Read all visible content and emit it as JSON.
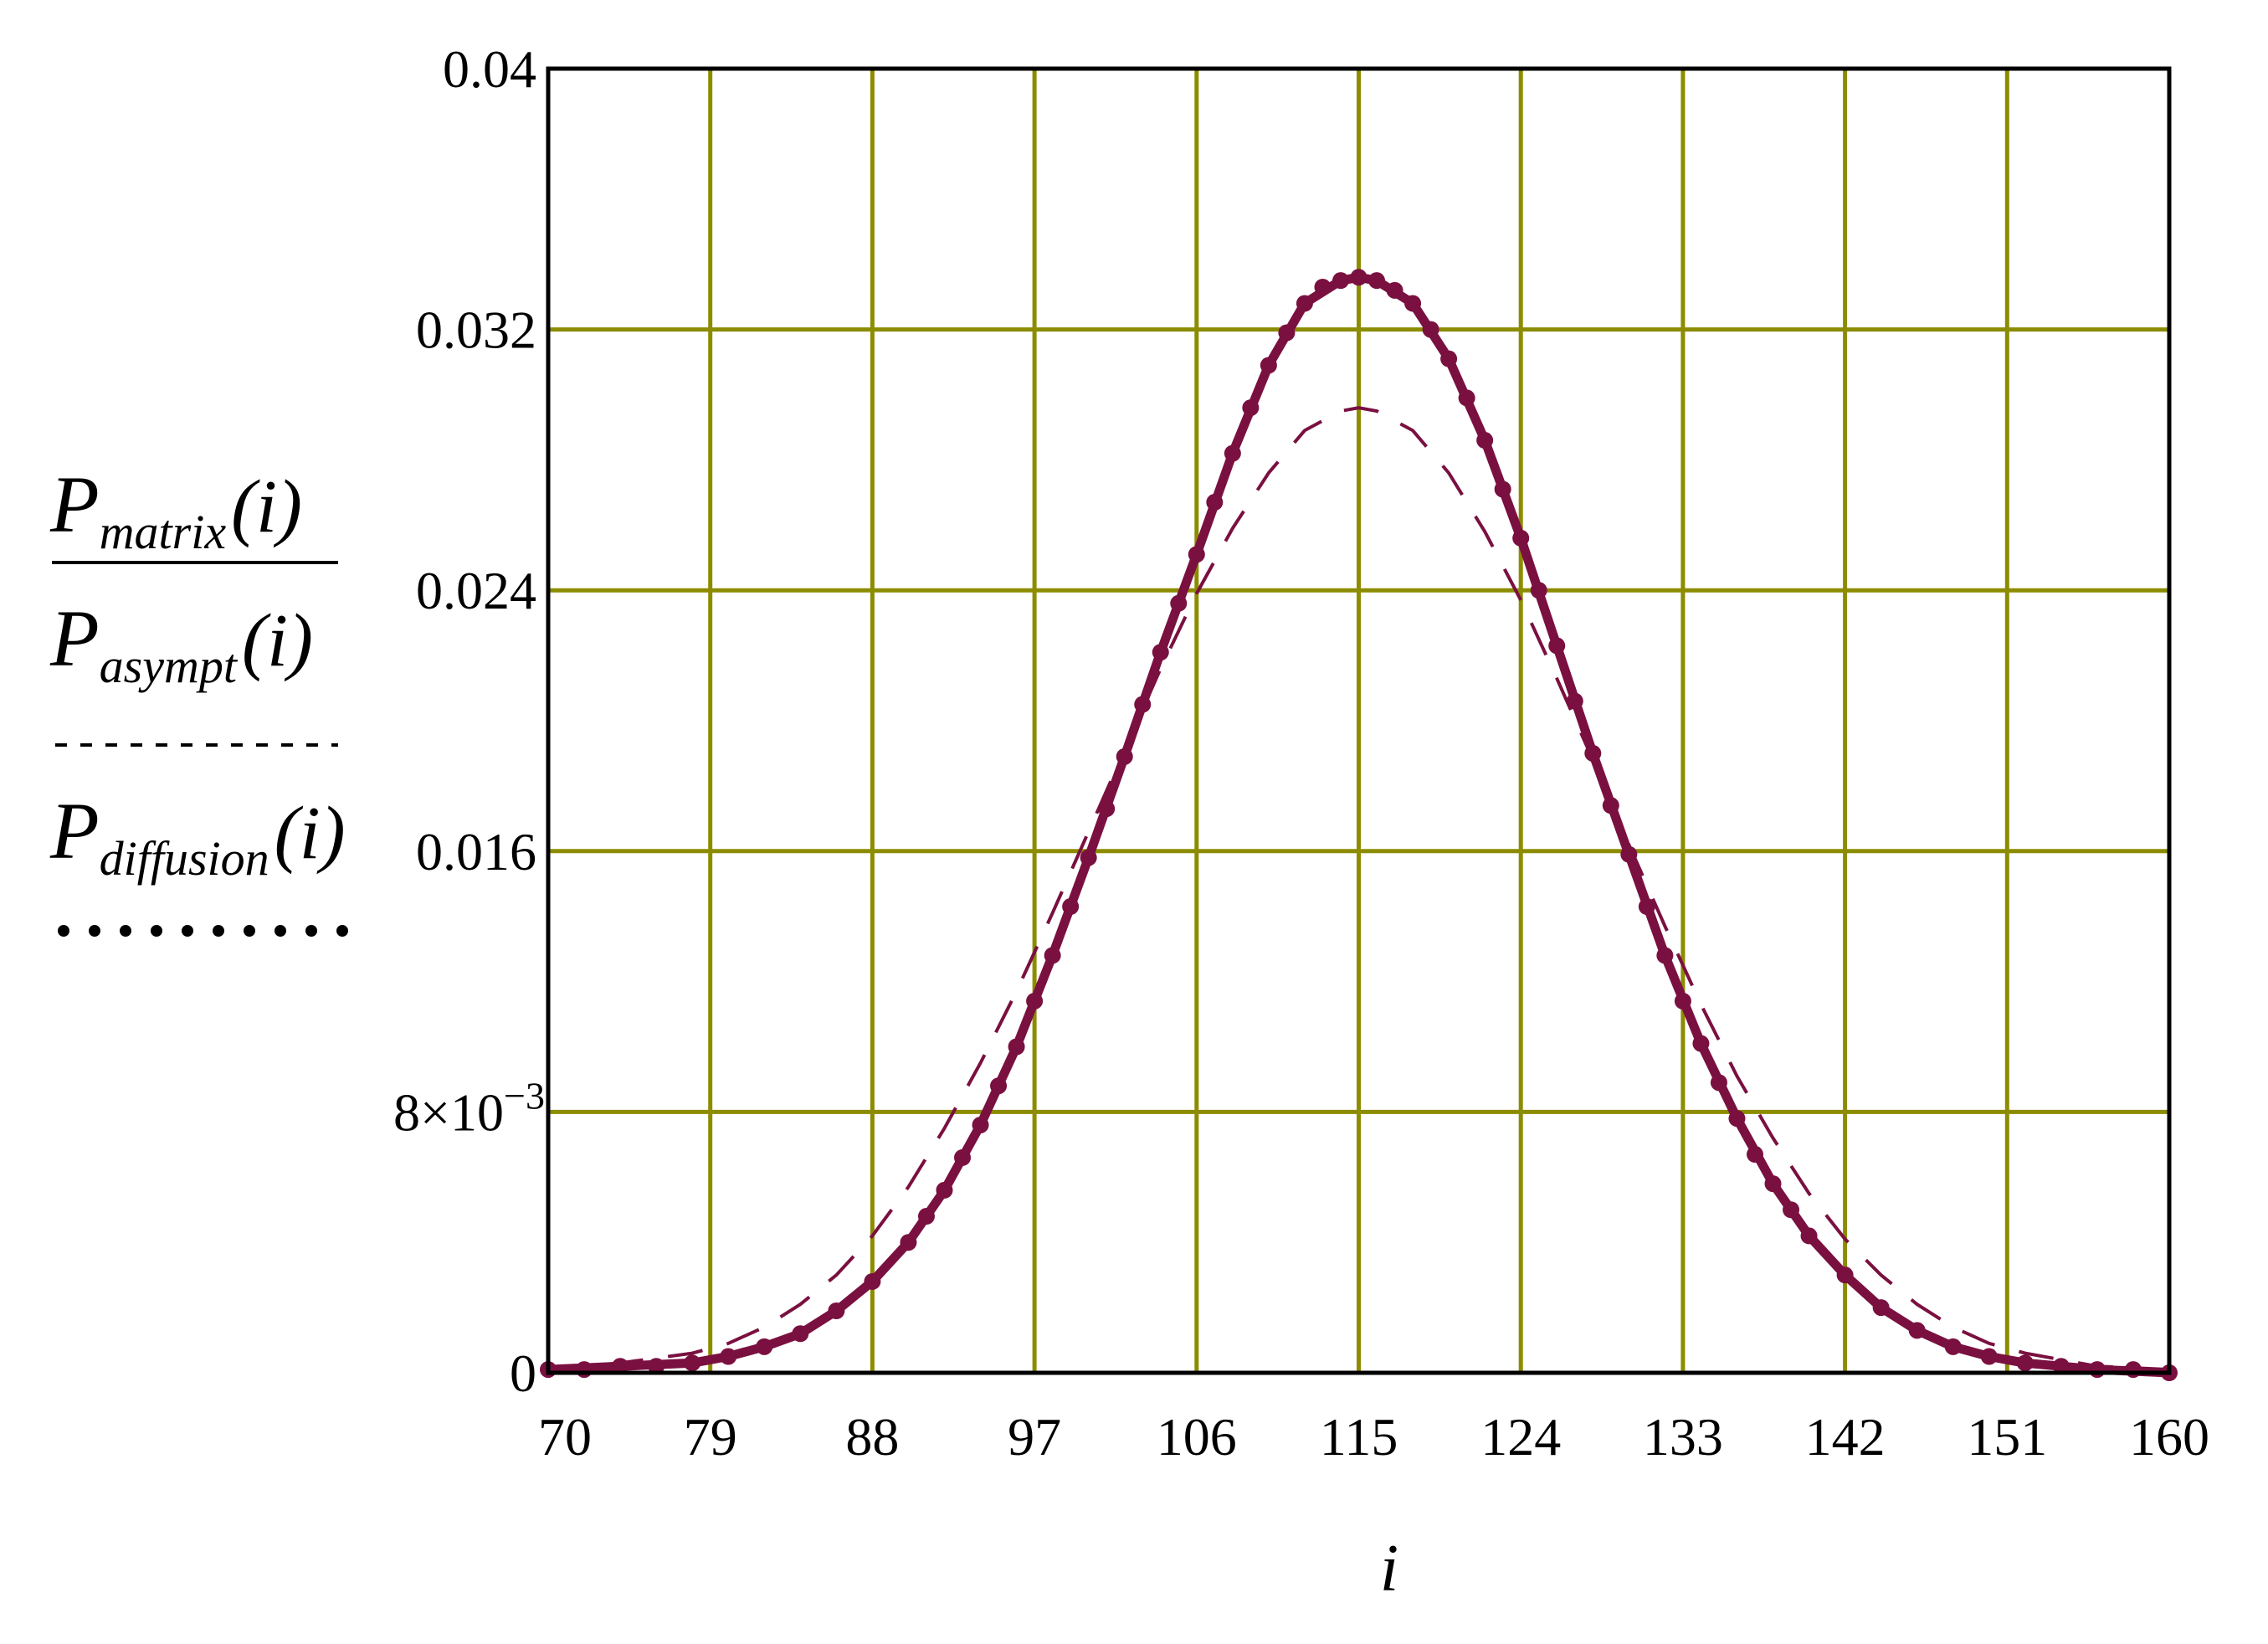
{
  "colors": {
    "grid": "#8c8c00",
    "series": "#7a1040",
    "frame": "#000000",
    "background": "#ffffff"
  },
  "chart_data": {
    "type": "line",
    "title": "",
    "xlabel": "i",
    "xlim": [
      70,
      160
    ],
    "ylim": [
      0,
      0.04
    ],
    "x_ticks": [
      "70",
      "79",
      "88",
      "97",
      "106",
      "115",
      "124",
      "133",
      "142",
      "151",
      "160"
    ],
    "y_ticks": [
      "0",
      "8×10",
      "0.016",
      "0.024",
      "0.032",
      "0.04"
    ],
    "y_tick_exponent": "−3",
    "grid": true,
    "legend_placement": "left",
    "legend": [
      {
        "main": "P",
        "sub": "matrix",
        "arg": "(i)",
        "style": "solid"
      },
      {
        "main": "P",
        "sub": "asympt",
        "arg": "(i)",
        "style": "dashed"
      },
      {
        "main": "P",
        "sub": "diffusion",
        "arg": "(i)",
        "style": "dotted"
      }
    ],
    "series": [
      {
        "name": "Pmatrix(i)",
        "style": "solid",
        "x": [
          70,
          74,
          78,
          80,
          82,
          84,
          86,
          88,
          90,
          92,
          94,
          96,
          98,
          100,
          102,
          104,
          106,
          108,
          110,
          112,
          114,
          115,
          116,
          118,
          120,
          122,
          124,
          126,
          128,
          130,
          132,
          134,
          136,
          138,
          140,
          142,
          144,
          146,
          148,
          150,
          152,
          154,
          156,
          160
        ],
        "y": [
          0.0001,
          0.0002,
          0.0003,
          0.0005,
          0.0008,
          0.0012,
          0.0019,
          0.0028,
          0.004,
          0.0056,
          0.0076,
          0.01,
          0.0128,
          0.0158,
          0.0189,
          0.0221,
          0.0251,
          0.0282,
          0.0309,
          0.0328,
          0.0335,
          0.0336,
          0.0335,
          0.0328,
          0.0311,
          0.0286,
          0.0256,
          0.0223,
          0.019,
          0.0159,
          0.0128,
          0.0101,
          0.0078,
          0.0058,
          0.0042,
          0.003,
          0.002,
          0.0013,
          0.0008,
          0.0005,
          0.0003,
          0.0002,
          0.0001,
          0.0
        ]
      },
      {
        "name": "Pasympt(i)",
        "style": "dashed",
        "x": [
          70,
          74,
          78,
          80,
          82,
          84,
          86,
          88,
          90,
          92,
          94,
          96,
          98,
          100,
          102,
          104,
          106,
          108,
          110,
          112,
          114,
          115,
          116,
          118,
          120,
          122,
          124,
          126,
          128,
          130,
          132,
          134,
          136,
          138,
          140,
          142,
          144,
          146,
          148,
          150,
          152,
          154,
          156,
          160
        ],
        "y": [
          0.0001,
          0.0003,
          0.0006,
          0.0009,
          0.0014,
          0.0021,
          0.003,
          0.0042,
          0.0057,
          0.0075,
          0.0095,
          0.0117,
          0.0141,
          0.0166,
          0.0191,
          0.0216,
          0.0239,
          0.0259,
          0.0276,
          0.0289,
          0.0295,
          0.0296,
          0.0295,
          0.0289,
          0.0276,
          0.0258,
          0.0237,
          0.0213,
          0.0188,
          0.0162,
          0.0137,
          0.0113,
          0.0091,
          0.0072,
          0.0055,
          0.0041,
          0.003,
          0.0021,
          0.0014,
          0.0009,
          0.0006,
          0.0004,
          0.0002,
          0.0001
        ]
      },
      {
        "name": "Pdiffusion(i)",
        "style": "dotted",
        "x": [
          70,
          72,
          74,
          76,
          78,
          80,
          82,
          84,
          86,
          88,
          90,
          91,
          92,
          93,
          94,
          95,
          96,
          97,
          98,
          99,
          100,
          101,
          102,
          103,
          104,
          105,
          106,
          107,
          108,
          109,
          110,
          111,
          112,
          113,
          114,
          115,
          116,
          117,
          118,
          119,
          120,
          121,
          122,
          123,
          124,
          125,
          126,
          127,
          128,
          129,
          130,
          131,
          132,
          133,
          134,
          135,
          136,
          137,
          138,
          139,
          140,
          142,
          144,
          146,
          148,
          150,
          152,
          154,
          156,
          158,
          160
        ],
        "y": [
          0.0001,
          0.0001,
          0.0002,
          0.0002,
          0.0003,
          0.0005,
          0.0008,
          0.0012,
          0.0019,
          0.0028,
          0.004,
          0.0048,
          0.0056,
          0.0066,
          0.0076,
          0.0088,
          0.01,
          0.0114,
          0.0128,
          0.0143,
          0.0158,
          0.0173,
          0.0189,
          0.0205,
          0.0221,
          0.0236,
          0.0251,
          0.0267,
          0.0282,
          0.0296,
          0.0309,
          0.0319,
          0.0328,
          0.0333,
          0.0335,
          0.0336,
          0.0335,
          0.0332,
          0.0328,
          0.032,
          0.0311,
          0.0299,
          0.0286,
          0.0271,
          0.0256,
          0.024,
          0.0223,
          0.0206,
          0.019,
          0.0174,
          0.0159,
          0.0143,
          0.0128,
          0.0114,
          0.0101,
          0.0089,
          0.0078,
          0.0067,
          0.0058,
          0.005,
          0.0042,
          0.003,
          0.002,
          0.0013,
          0.0008,
          0.0005,
          0.0003,
          0.0002,
          0.0001,
          0.0001,
          0.0
        ]
      }
    ]
  }
}
